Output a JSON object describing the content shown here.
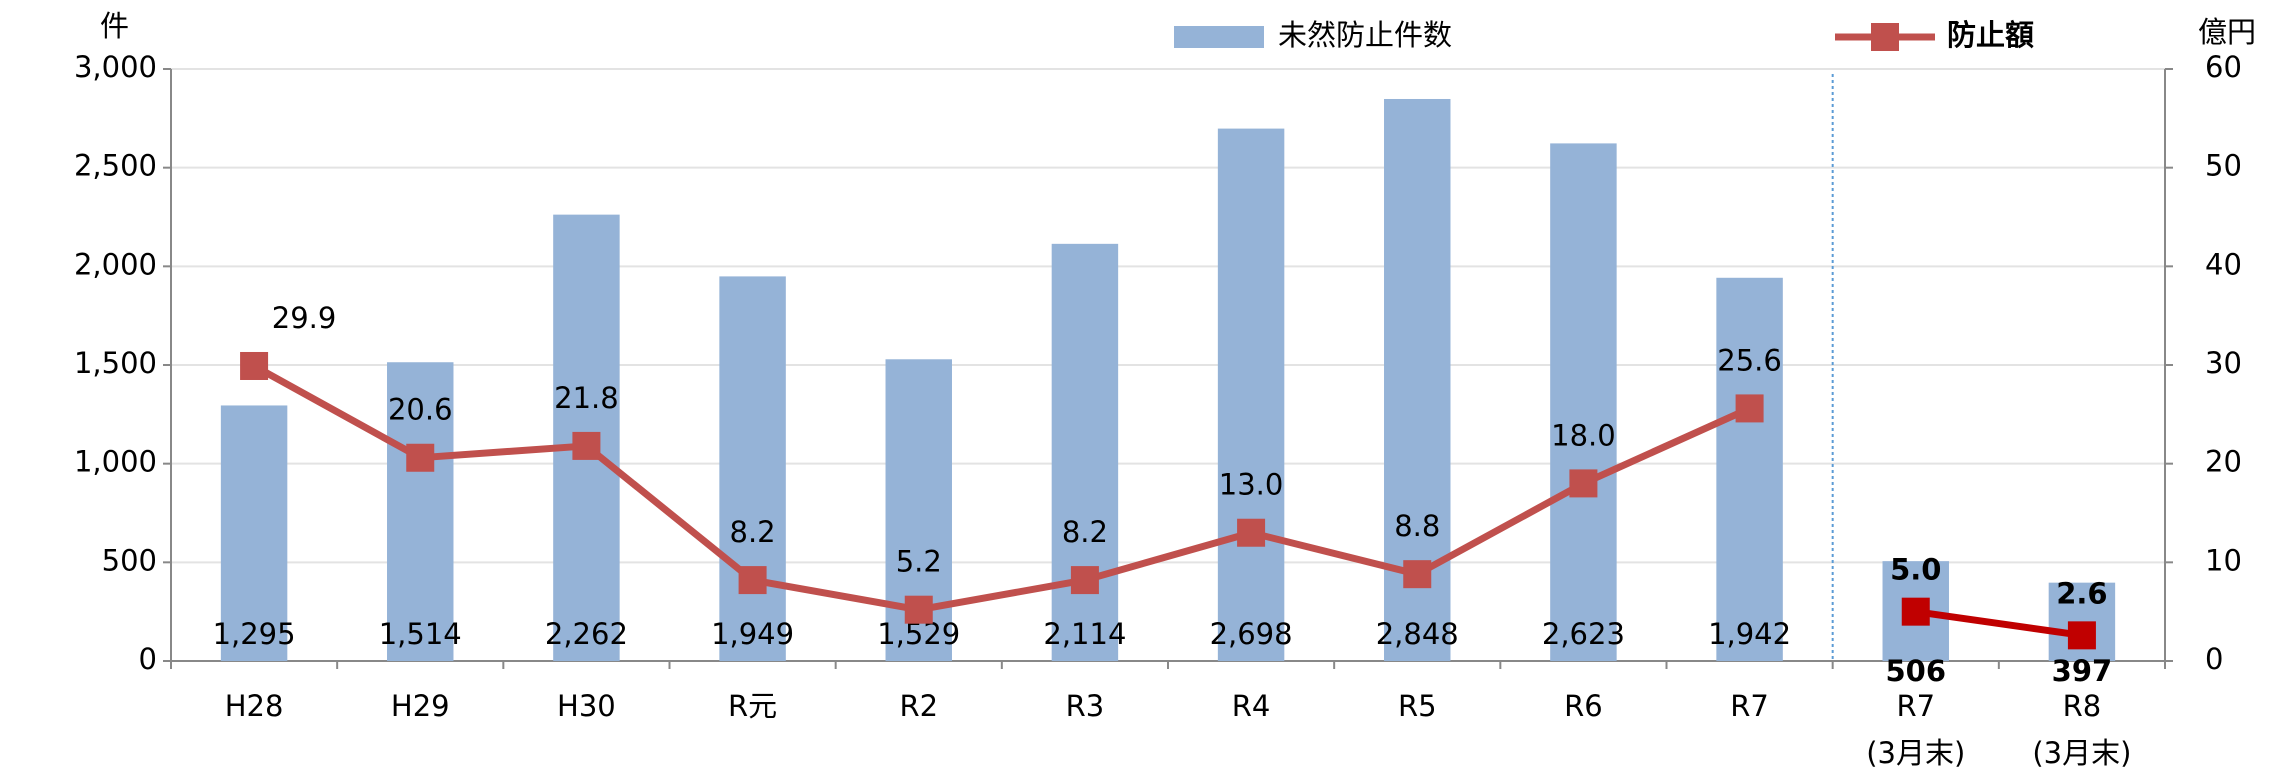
{
  "chart_data": {
    "type": "bar",
    "y_label": "件",
    "y2_label": "億円",
    "categories": [
      "H28",
      "H29",
      "H30",
      "R元",
      "R2",
      "R3",
      "R4",
      "R5",
      "R6",
      "R7",
      "R7\n(3月末)",
      "R8\n(3月末)"
    ],
    "series": [
      {
        "name": "未然防止件数",
        "type": "bar",
        "color": "#95b3d7",
        "values": [
          1295,
          1514,
          2262,
          1949,
          1529,
          2114,
          2698,
          2848,
          2623,
          1942,
          506,
          397
        ],
        "value_labels": [
          "1,295",
          "1,514",
          "2,262",
          "1,949",
          "1,529",
          "2,114",
          "2,698",
          "2,848",
          "2,623",
          "1,942",
          "506",
          "397"
        ]
      },
      {
        "name": "防止額",
        "type": "line",
        "axis": "y2",
        "color": "#c0504d",
        "values": [
          29.9,
          20.6,
          21.8,
          8.2,
          5.2,
          8.2,
          13.0,
          8.8,
          18.0,
          25.6,
          null,
          null
        ],
        "value_labels": [
          "29.9",
          "20.6",
          "21.8",
          "8.2",
          "5.2",
          "8.2",
          "13.0",
          "8.8",
          "18.0",
          "25.6",
          null,
          null
        ]
      },
      {
        "type": "line",
        "axis": "y2",
        "color": "#c00000",
        "values": [
          null,
          null,
          null,
          null,
          null,
          null,
          null,
          null,
          null,
          null,
          5.0,
          2.6
        ],
        "value_labels": [
          null,
          null,
          null,
          null,
          null,
          null,
          null,
          null,
          null,
          null,
          "5.0",
          "2.6"
        ]
      }
    ],
    "ylim": [
      0,
      3000
    ],
    "yticks": [
      0,
      500,
      {
        "value": 1000,
        "label": "1,000"
      },
      {
        "value": 1500,
        "label": "1,500"
      },
      {
        "value": 2000,
        "label": "2,000"
      },
      {
        "value": 2500,
        "label": "2,500"
      },
      {
        "value": 3000,
        "label": "3,000"
      }
    ],
    "y2lim": [
      0,
      60
    ],
    "y2ticks": [
      0,
      10,
      20,
      30,
      40,
      50,
      60
    ],
    "grid": true
  }
}
